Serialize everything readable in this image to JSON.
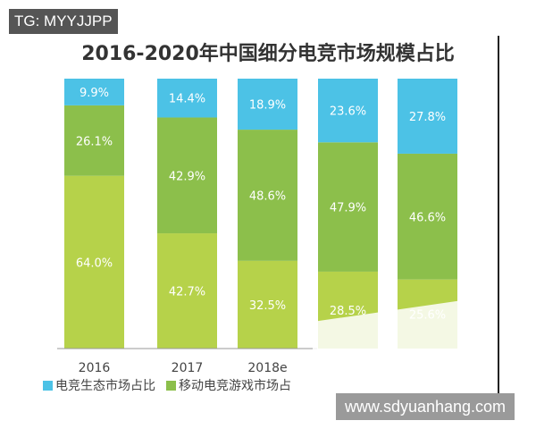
{
  "watermarks": {
    "top_left": "TG: MYYJJPP",
    "bottom_right": "www.sdyuanhang.com"
  },
  "chart_data": {
    "type": "bar",
    "stacked": true,
    "title": "2016-2020年中国细分电竞市场规模占比",
    "categories": [
      "2016",
      "2017",
      "2018e",
      "",
      ""
    ],
    "ylim": [
      0,
      100
    ],
    "grid": false,
    "legend_placement": "bottom-left",
    "series": [
      {
        "name": "",
        "values": [
          64.0,
          42.7,
          32.5,
          28.5,
          25.6
        ],
        "color": "#b6d24a"
      },
      {
        "name": "移动电竞游戏市场占",
        "values": [
          26.1,
          42.9,
          48.6,
          47.9,
          46.6
        ],
        "color": "#8cbf4b"
      },
      {
        "name": "电竞生态市场占比",
        "values": [
          9.9,
          14.4,
          18.9,
          23.6,
          27.8
        ],
        "color": "#4cc2e6"
      }
    ]
  }
}
